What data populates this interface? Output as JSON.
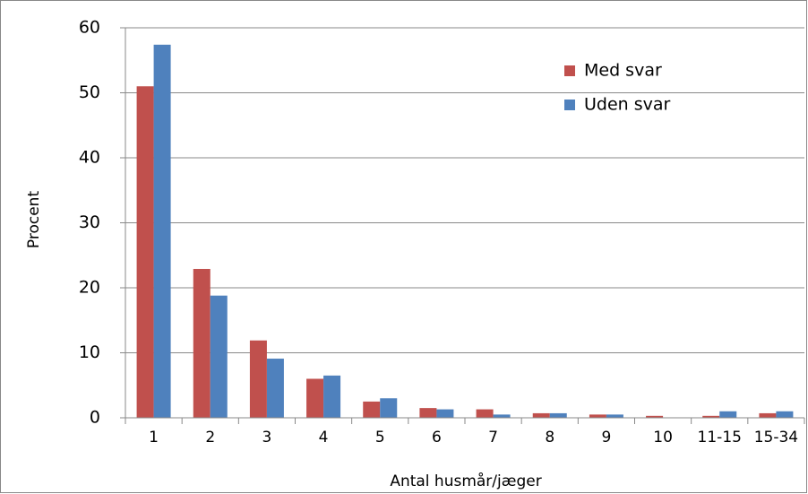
{
  "chart_data": {
    "type": "bar",
    "x_label": "Antal husmår/jæger",
    "y_label": "Procent",
    "categories": [
      "1",
      "2",
      "3",
      "4",
      "5",
      "6",
      "7",
      "8",
      "9",
      "10",
      "11-15",
      "15-34"
    ],
    "series": [
      {
        "name": "Med svar",
        "color": "#c0504d",
        "values": [
          51,
          22.9,
          11.9,
          6,
          2.5,
          1.5,
          1.3,
          0.7,
          0.5,
          0.3,
          0.3,
          0.7
        ]
      },
      {
        "name": "Uden svar",
        "color": "#4f81bd",
        "values": [
          57.4,
          18.8,
          9.1,
          6.5,
          3,
          1.3,
          0.5,
          0.7,
          0.5,
          0,
          1,
          1
        ]
      }
    ],
    "ylim": [
      0,
      60
    ],
    "yticks": [
      0,
      10,
      20,
      30,
      40,
      50,
      60
    ],
    "grid": true,
    "legend": "upper right"
  }
}
